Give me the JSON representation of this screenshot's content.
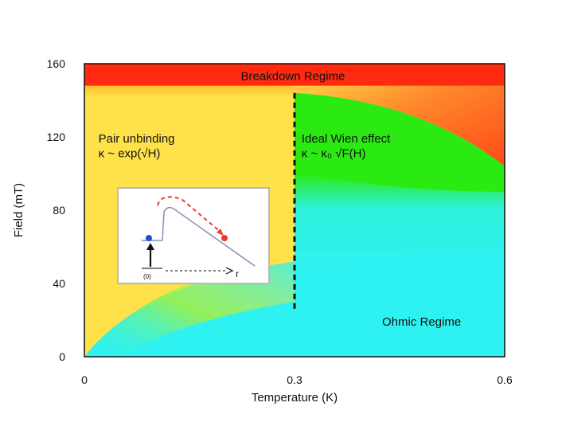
{
  "chart_data": {
    "type": "phase-diagram",
    "xlabel": "Temperature (K)",
    "ylabel": "Field (mT)",
    "xlim": [
      0,
      0.6
    ],
    "ylim": [
      0,
      160
    ],
    "x_ticks": [
      "0",
      "0.3",
      "0.6"
    ],
    "x_tick_values": [
      0,
      0.3,
      0.6
    ],
    "y_ticks": [
      "0",
      "40",
      "80",
      "120",
      "160"
    ],
    "y_tick_values": [
      0,
      40,
      80,
      120,
      160
    ],
    "grid": false,
    "boundary": {
      "x": 0.3,
      "y_from": 24,
      "y_to": 144,
      "style": "dashed"
    },
    "regions": [
      {
        "label": "Breakdown Regime",
        "color": "#ff2a10",
        "x_from": 0,
        "x_to": 0.6,
        "y_from": 148,
        "y_to": 160
      },
      {
        "label": "Pair unbinding",
        "formula": "κ ~ exp(√H)",
        "color": "#ffe24a"
      },
      {
        "label": "Ideal Wien effect",
        "formula": "κ ~ κ₀ √F(H)",
        "color": "#2bea12"
      },
      {
        "label": "Ohmic Regime",
        "color": "#2ef2f2"
      }
    ],
    "inset": {
      "axis_label": "r",
      "level_label": "(0)"
    }
  }
}
